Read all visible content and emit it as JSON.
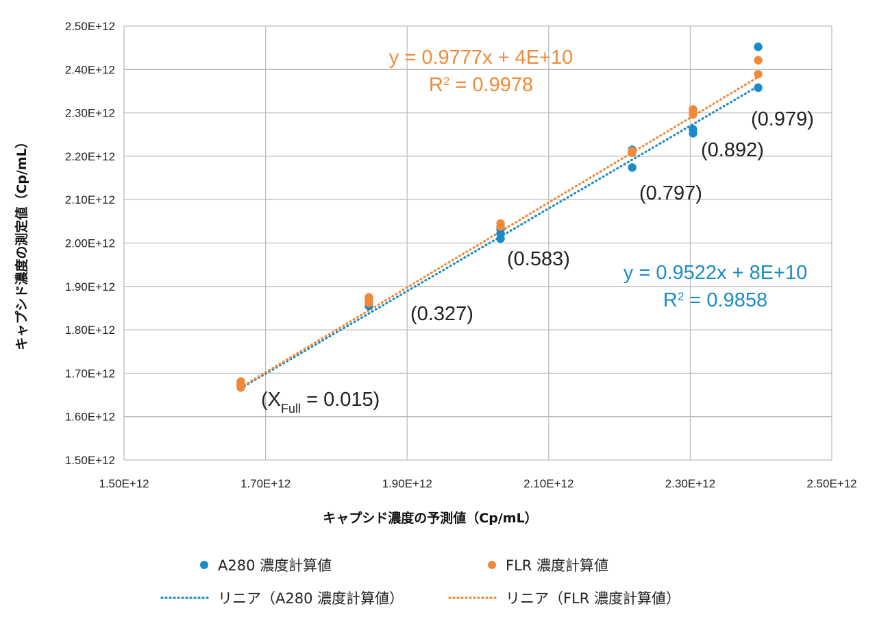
{
  "chart_data": {
    "type": "scatter",
    "xlabel": "キャプシド濃度の予測値（Cp/mL）",
    "ylabel": "キャプシド濃度の測定値（Cp/mL）",
    "xlim": [
      1500000000000.0,
      2500000000000.0
    ],
    "ylim": [
      1500000000000.0,
      2500000000000.0
    ],
    "x_ticks": [
      1500000000000.0,
      1700000000000.0,
      1900000000000.0,
      2100000000000.0,
      2300000000000.0,
      2500000000000.0
    ],
    "x_tick_labels": [
      "1.50E+12",
      "1.70E+12",
      "1.90E+12",
      "2.10E+12",
      "2.30E+12",
      "2.50E+12"
    ],
    "y_ticks": [
      1500000000000.0,
      1600000000000.0,
      1700000000000.0,
      1800000000000.0,
      1900000000000.0,
      2000000000000.0,
      2100000000000.0,
      2200000000000.0,
      2300000000000.0,
      2400000000000.0,
      2500000000000.0
    ],
    "y_tick_labels": [
      "1.50E+12",
      "1.60E+12",
      "1.70E+12",
      "1.80E+12",
      "1.90E+12",
      "2.00E+12",
      "2.10E+12",
      "2.20E+12",
      "2.30E+12",
      "2.40E+12",
      "2.50E+12"
    ],
    "grid": true,
    "legend_position": "bottom",
    "series": [
      {
        "name": "A280 濃度計算値",
        "color": "#1a8bc7",
        "marker": "circle",
        "points": [
          [
            1665000000000.0,
            1672000000000.0
          ],
          [
            1665000000000.0,
            1676000000000.0
          ],
          [
            1846000000000.0,
            1855000000000.0
          ],
          [
            1846000000000.0,
            1862000000000.0
          ],
          [
            2032000000000.0,
            2010000000000.0
          ],
          [
            2032000000000.0,
            2022000000000.0
          ],
          [
            2032000000000.0,
            2032000000000.0
          ],
          [
            2218000000000.0,
            2174000000000.0
          ],
          [
            2218000000000.0,
            2212000000000.0
          ],
          [
            2218000000000.0,
            2215000000000.0
          ],
          [
            2304000000000.0,
            2253000000000.0
          ],
          [
            2304000000000.0,
            2262000000000.0
          ],
          [
            2396000000000.0,
            2358000000000.0
          ],
          [
            2396000000000.0,
            2452000000000.0
          ]
        ],
        "trendline": {
          "name": "リニア（A280 濃度計算値）",
          "slope": 0.9522,
          "intercept": 80000000000.0,
          "x_range": [
            1665000000000.0,
            2396000000000.0
          ],
          "equation": "y = 0.9522x + 8E+10",
          "r2_label": "R",
          "r2_value": " = 0.9858"
        }
      },
      {
        "name": "FLR 濃度計算値",
        "color": "#f08a38",
        "marker": "circle",
        "points": [
          [
            1665000000000.0,
            1667000000000.0
          ],
          [
            1665000000000.0,
            1675000000000.0
          ],
          [
            1665000000000.0,
            1681000000000.0
          ],
          [
            1846000000000.0,
            1862000000000.0
          ],
          [
            1846000000000.0,
            1870000000000.0
          ],
          [
            1846000000000.0,
            1875000000000.0
          ],
          [
            2032000000000.0,
            2038000000000.0
          ],
          [
            2032000000000.0,
            2045000000000.0
          ],
          [
            2218000000000.0,
            2208000000000.0
          ],
          [
            2218000000000.0,
            2212000000000.0
          ],
          [
            2304000000000.0,
            2296000000000.0
          ],
          [
            2304000000000.0,
            2302000000000.0
          ],
          [
            2304000000000.0,
            2308000000000.0
          ],
          [
            2396000000000.0,
            2389000000000.0
          ],
          [
            2396000000000.0,
            2421000000000.0
          ]
        ],
        "trendline": {
          "name": "リニア（FLR 濃度計算値）",
          "slope": 0.9777,
          "intercept": 40000000000.0,
          "x_range": [
            1665000000000.0,
            2396000000000.0
          ],
          "equation": "y = 0.9777x + 4E+10",
          "r2_label": "R",
          "r2_value": " = 0.9978"
        }
      }
    ],
    "annotations": [
      {
        "main": "(X",
        "sub": "Full",
        "rest": " = 0.015)"
      },
      {
        "main": "(0.327)"
      },
      {
        "main": "(0.583)"
      },
      {
        "main": "(0.797)"
      },
      {
        "main": "(0.892)"
      },
      {
        "main": "(0.979)"
      }
    ]
  }
}
